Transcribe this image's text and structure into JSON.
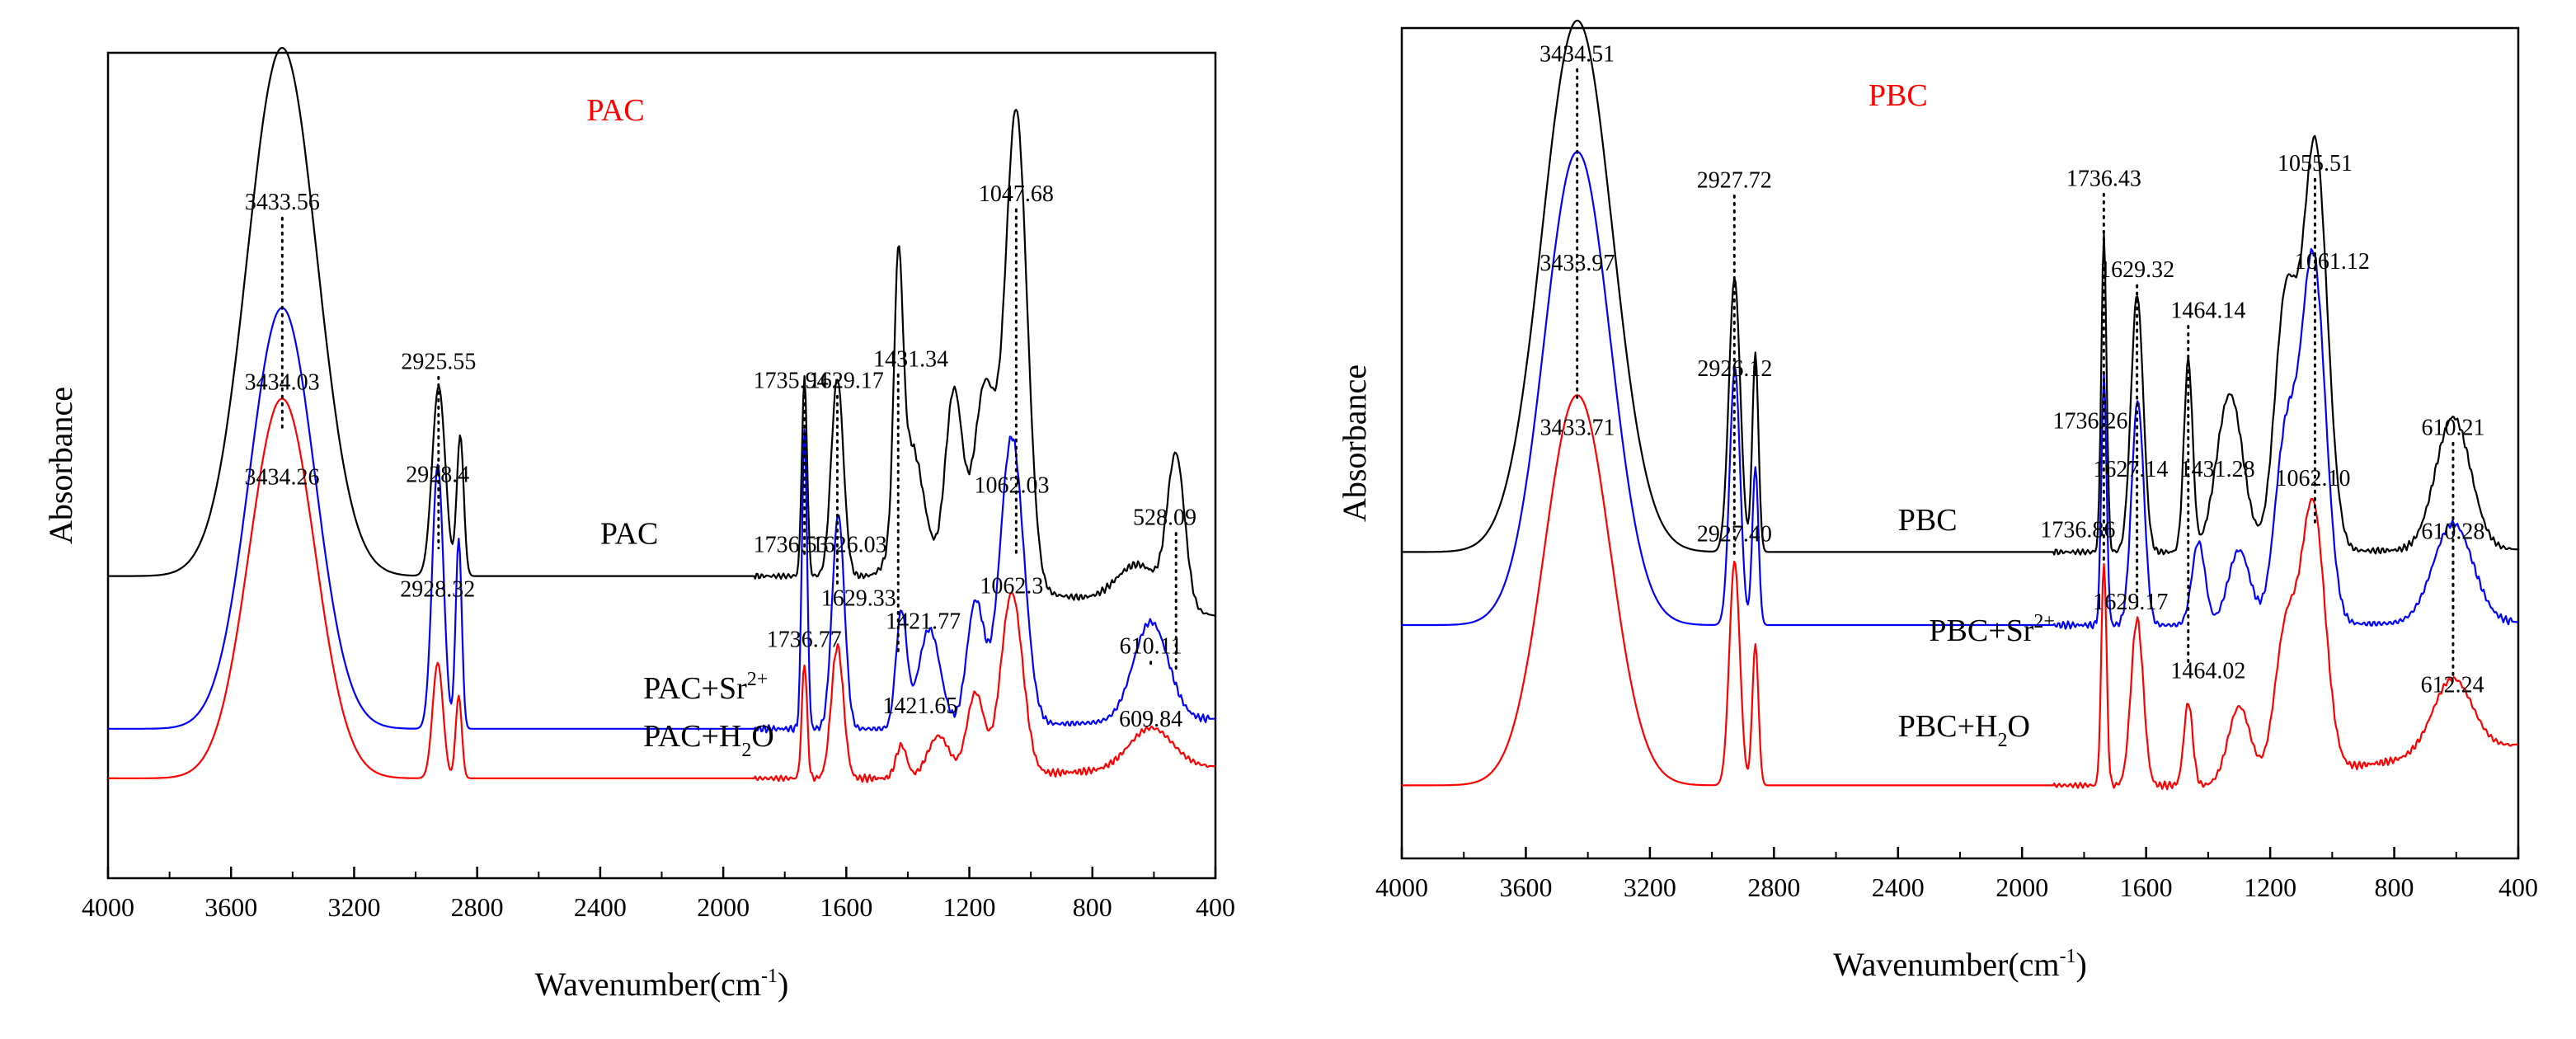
{
  "colors": {
    "black": "#000000",
    "blue": "#0000ff",
    "red": "#ff0000",
    "axis": "#000000"
  },
  "chart_data": [
    {
      "id": "pac",
      "type": "line",
      "title": "PAC",
      "xlabel": "Wavenumber(cm-1)",
      "xlabel_main": "Wavenumber(cm",
      "xlabel_sup": "-1",
      "xlabel_close": ")",
      "ylabel": "Absorbance",
      "xlim": [
        4000,
        400
      ],
      "ylim": [
        0,
        1
      ],
      "xticks": [
        "4000",
        "3600",
        "3200",
        "2800",
        "2400",
        "2000",
        "1600",
        "1200",
        "800",
        "400"
      ],
      "series": [
        {
          "name": "PAC",
          "label_main": "PAC",
          "label_sup": "",
          "label_sub": "",
          "label_tail": "",
          "label_x": 2400,
          "label_y": 0.405,
          "color": "black",
          "baseline": 0.366,
          "tail": 0.318,
          "peaks": [
            [
              3434,
              0.64,
              160
            ],
            [
              2925,
              0.23,
              30
            ],
            [
              2855,
              0.17,
              16
            ],
            [
              1736,
              0.24,
              12
            ],
            [
              1629,
              0.24,
              28
            ],
            [
              1431,
              0.3,
              20
            ],
            [
              1390,
              0.16,
              60
            ],
            [
              1250,
              0.23,
              40
            ],
            [
              1150,
              0.24,
              50
            ],
            [
              1047.68,
              0.58,
              50
            ],
            [
              528,
              0.18,
              40
            ],
            [
              650,
              0.05,
              100
            ]
          ],
          "labels": [
            {
              "text": "3433.56",
              "x": 3433.56,
              "y": 0.81
            },
            {
              "text": "2925.55",
              "x": 2925.55,
              "y": 0.617
            },
            {
              "text": "1735.94",
              "x": 1780,
              "y": 0.594
            },
            {
              "text": "1629.17",
              "x": 1600,
              "y": 0.594
            },
            {
              "text": "1431.34",
              "x": 1390,
              "y": 0.62
            },
            {
              "text": "1047.68",
              "x": 1047.68,
              "y": 0.82
            },
            {
              "text": "528.09",
              "x": 565,
              "y": 0.428
            }
          ]
        },
        {
          "name": "PAC+Sr2+",
          "label_main": "PAC+Sr",
          "label_sup": "2+",
          "label_sub": "",
          "label_tail": "",
          "label_x": 2260,
          "label_y": 0.218,
          "color": "blue",
          "baseline": 0.181,
          "tail": 0.193,
          "peaks": [
            [
              3434,
              0.51,
              150
            ],
            [
              2928,
              0.32,
              26
            ],
            [
              2860,
              0.23,
              14
            ],
            [
              1736,
              0.36,
              12
            ],
            [
              1626,
              0.26,
              28
            ],
            [
              1421,
              0.14,
              25
            ],
            [
              1330,
              0.12,
              50
            ],
            [
              1180,
              0.15,
              40
            ],
            [
              1062,
              0.35,
              55
            ],
            [
              610,
              0.12,
              80
            ]
          ],
          "labels": [
            {
              "text": "3434.03",
              "x": 3434.03,
              "y": 0.592
            },
            {
              "text": "2928.4",
              "x": 2928.4,
              "y": 0.48
            },
            {
              "text": "1736.53",
              "x": 1780,
              "y": 0.395
            },
            {
              "text": "1626.03",
              "x": 1590,
              "y": 0.395
            },
            {
              "text": "1421.77",
              "x": 1350,
              "y": 0.302
            },
            {
              "text": "1062.03",
              "x": 1062.03,
              "y": 0.467
            },
            {
              "text": "610.11",
              "x": 610.11,
              "y": 0.272
            }
          ]
        },
        {
          "name": "PAC+H2O",
          "label_main": "PAC+H",
          "label_sup": "",
          "label_sub": "2",
          "label_tail": "O",
          "label_x": 2260,
          "label_y": 0.16,
          "color": "red",
          "baseline": 0.121,
          "tail": 0.135,
          "peaks": [
            [
              3434,
              0.46,
              150
            ],
            [
              2928,
              0.14,
              24
            ],
            [
              2860,
              0.1,
              14
            ],
            [
              1736,
              0.14,
              12
            ],
            [
              1629,
              0.16,
              28
            ],
            [
              1421,
              0.04,
              25
            ],
            [
              1300,
              0.05,
              50
            ],
            [
              1180,
              0.1,
              40
            ],
            [
              1062,
              0.22,
              50
            ],
            [
              610,
              0.05,
              100
            ]
          ],
          "labels": [
            {
              "text": "3434.26",
              "x": 3434.26,
              "y": 0.477
            },
            {
              "text": "2928.32",
              "x": 2928.32,
              "y": 0.341
            },
            {
              "text": "1736.77",
              "x": 1736.77,
              "y": 0.28
            },
            {
              "text": "1629.33",
              "x": 1560,
              "y": 0.33
            },
            {
              "text": "1421.65",
              "x": 1360,
              "y": 0.2
            },
            {
              "text": "1062.3",
              "x": 1062.3,
              "y": 0.345
            },
            {
              "text": "609.84",
              "x": 610,
              "y": 0.184
            }
          ]
        }
      ],
      "droplines": [
        [
          3433.56,
          0.81,
          0.54
        ],
        [
          2925.55,
          0.617,
          0.4
        ],
        [
          1735.94,
          0.594,
          0.392
        ],
        [
          1629.17,
          0.594,
          0.353
        ],
        [
          1431.34,
          0.62,
          0.272
        ],
        [
          1047.68,
          0.82,
          0.39
        ],
        [
          528.09,
          0.428,
          0.254
        ],
        [
          610.11,
          0.272,
          0.254
        ]
      ]
    },
    {
      "id": "pbc",
      "type": "line",
      "title": "PBC",
      "xlabel": "Wavenumber(cm-1)",
      "xlabel_main": "Wavenumber(cm",
      "xlabel_sup": "-1",
      "xlabel_close": ")",
      "ylabel": "Absorbance",
      "xlim": [
        4000,
        400
      ],
      "ylim": [
        0,
        1
      ],
      "xticks": [
        "4000",
        "3600",
        "3200",
        "2800",
        "2400",
        "2000",
        "1600",
        "1200",
        "800",
        "400"
      ],
      "series": [
        {
          "name": "PBC",
          "label_main": "PBC",
          "label_sup": "",
          "label_sub": "",
          "label_tail": "",
          "label_x": 2400,
          "label_y": 0.395,
          "color": "black",
          "baseline": 0.369,
          "tail": 0.372,
          "peaks": [
            [
              3434,
              0.64,
              160
            ],
            [
              2927,
              0.33,
              26
            ],
            [
              2860,
              0.24,
              14
            ],
            [
              1736,
              0.38,
              12
            ],
            [
              1629,
              0.31,
              28
            ],
            [
              1464,
              0.23,
              20
            ],
            [
              1330,
              0.19,
              60
            ],
            [
              1150,
              0.3,
              50
            ],
            [
              1055,
              0.49,
              55
            ],
            [
              610,
              0.16,
              80
            ]
          ],
          "labels": [
            {
              "text": "3434.51",
              "x": 3434.51,
              "y": 0.96
            },
            {
              "text": "2927.72",
              "x": 2927.72,
              "y": 0.808
            },
            {
              "text": "1736.43",
              "x": 1736.43,
              "y": 0.81
            },
            {
              "text": "1629.32",
              "x": 1629.32,
              "y": 0.7
            },
            {
              "text": "1464.14",
              "x": 1400,
              "y": 0.651
            },
            {
              "text": "1055.51",
              "x": 1055.51,
              "y": 0.828
            },
            {
              "text": "610.21",
              "x": 610.21,
              "y": 0.51
            }
          ]
        },
        {
          "name": "PBC+Sr2+",
          "label_main": "PBC+Sr",
          "label_sup": "2+",
          "label_sub": "",
          "label_tail": "",
          "label_x": 2300,
          "label_y": 0.262,
          "color": "blue",
          "baseline": 0.281,
          "tail": 0.284,
          "peaks": [
            [
              3434,
              0.57,
              150
            ],
            [
              2926,
              0.31,
              24
            ],
            [
              2860,
              0.19,
              14
            ],
            [
              1736,
              0.3,
              12
            ],
            [
              1627,
              0.27,
              28
            ],
            [
              1431,
              0.1,
              30
            ],
            [
              1300,
              0.09,
              50
            ],
            [
              1150,
              0.22,
              50
            ],
            [
              1061,
              0.44,
              55
            ],
            [
              610,
              0.12,
              90
            ]
          ],
          "labels": [
            {
              "text": "3433.97",
              "x": 3433.97,
              "y": 0.708
            },
            {
              "text": "2926.12",
              "x": 2926.12,
              "y": 0.581
            },
            {
              "text": "1736.26",
              "x": 1780,
              "y": 0.518
            },
            {
              "text": "1627.14",
              "x": 1650,
              "y": 0.46
            },
            {
              "text": "1431.28",
              "x": 1370,
              "y": 0.46
            },
            {
              "text": "1061.12",
              "x": 1000,
              "y": 0.71
            },
            {
              "text": "610.28",
              "x": 610.28,
              "y": 0.385
            }
          ]
        },
        {
          "name": "PBC+H2O",
          "label_main": "PBC+H",
          "label_sup": "",
          "label_sub": "2",
          "label_tail": "O",
          "label_x": 2400,
          "label_y": 0.147,
          "color": "red",
          "baseline": 0.088,
          "tail": 0.137,
          "peaks": [
            [
              3434,
              0.47,
              150
            ],
            [
              2927,
              0.27,
              24
            ],
            [
              2860,
              0.17,
              14
            ],
            [
              1736,
              0.27,
              12
            ],
            [
              1629,
              0.2,
              28
            ],
            [
              1464,
              0.1,
              20
            ],
            [
              1300,
              0.09,
              50
            ],
            [
              1150,
              0.17,
              50
            ],
            [
              1062,
              0.32,
              55
            ],
            [
              612,
              0.09,
              90
            ]
          ],
          "labels": [
            {
              "text": "3433.71",
              "x": 3433.71,
              "y": 0.51
            },
            {
              "text": "2927.40",
              "x": 2927.4,
              "y": 0.382
            },
            {
              "text": "1736.86",
              "x": 1820,
              "y": 0.387
            },
            {
              "text": "1629.17",
              "x": 1650,
              "y": 0.3
            },
            {
              "text": "1464.02",
              "x": 1400,
              "y": 0.217
            },
            {
              "text": "1062.10",
              "x": 1062.1,
              "y": 0.449
            },
            {
              "text": "612.24",
              "x": 612.24,
              "y": 0.2
            }
          ]
        }
      ],
      "droplines": [
        [
          3434.51,
          0.96,
          0.55
        ],
        [
          2927.72,
          0.808,
          0.367
        ],
        [
          1736.43,
          0.81,
          0.358
        ],
        [
          1629.32,
          0.7,
          0.3
        ],
        [
          1464.14,
          0.651,
          0.23
        ],
        [
          1055.51,
          0.828,
          0.4
        ],
        [
          610.21,
          0.51,
          0.3
        ],
        [
          610.28,
          0.385,
          0.215
        ]
      ]
    }
  ]
}
